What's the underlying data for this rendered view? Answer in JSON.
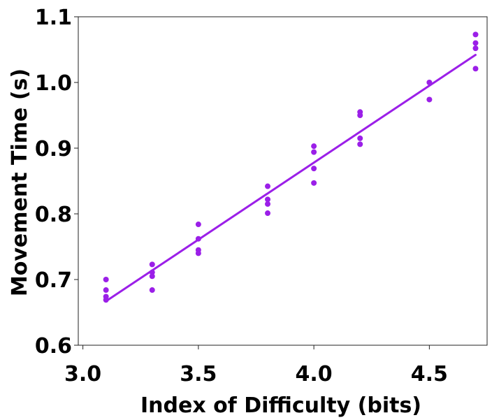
{
  "chart_data": {
    "type": "scatter",
    "xlabel": "Index of Difficulty (bits)",
    "ylabel": "Movement Time (s)",
    "xlim": [
      2.98,
      4.75
    ],
    "ylim": [
      0.6,
      1.1
    ],
    "x_ticks": [
      "3.0",
      "3.5",
      "4.0",
      "4.5"
    ],
    "y_ticks": [
      "0.6",
      "0.7",
      "0.8",
      "0.9",
      "1.0",
      "1.1"
    ],
    "grid": false,
    "legend": "none",
    "colors": {
      "points": "#9B1FE8",
      "fit_line": "#9B1FE8"
    },
    "series": [
      {
        "type": "scatter",
        "points": [
          [
            3.1,
            0.7
          ],
          [
            3.1,
            0.684
          ],
          [
            3.1,
            0.674
          ],
          [
            3.1,
            0.669
          ],
          [
            3.3,
            0.723
          ],
          [
            3.3,
            0.711
          ],
          [
            3.3,
            0.705
          ],
          [
            3.3,
            0.684
          ],
          [
            3.5,
            0.784
          ],
          [
            3.5,
            0.762
          ],
          [
            3.5,
            0.745
          ],
          [
            3.5,
            0.74
          ],
          [
            3.8,
            0.842
          ],
          [
            3.8,
            0.822
          ],
          [
            3.8,
            0.815
          ],
          [
            3.8,
            0.801
          ],
          [
            4.0,
            0.903
          ],
          [
            4.0,
            0.894
          ],
          [
            4.0,
            0.869
          ],
          [
            4.0,
            0.847
          ],
          [
            4.2,
            0.955
          ],
          [
            4.2,
            0.95
          ],
          [
            4.2,
            0.915
          ],
          [
            4.2,
            0.906
          ],
          [
            4.5,
            1.0
          ],
          [
            4.5,
            0.974
          ],
          [
            4.7,
            1.073
          ],
          [
            4.7,
            1.06
          ],
          [
            4.7,
            1.052
          ],
          [
            4.7,
            1.021
          ]
        ]
      },
      {
        "type": "line",
        "points": [
          [
            3.1,
            0.667
          ],
          [
            4.7,
            1.042
          ]
        ]
      }
    ]
  }
}
